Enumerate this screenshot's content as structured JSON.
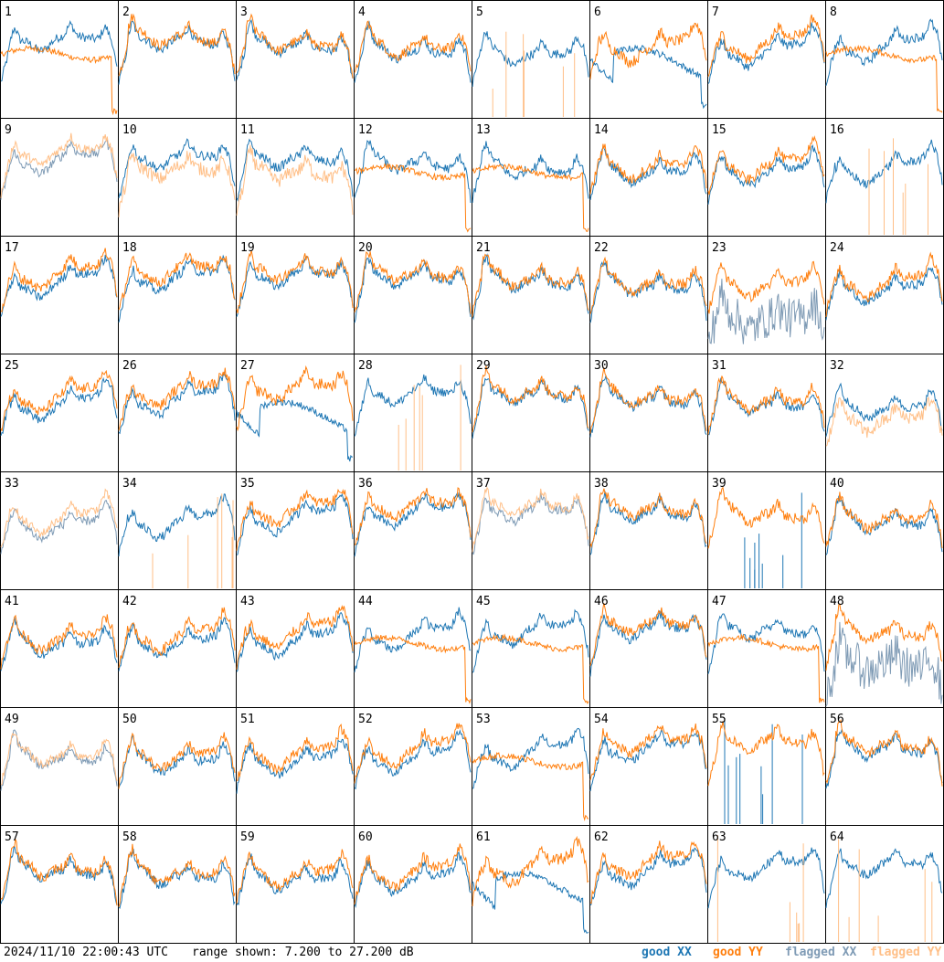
{
  "chart_data": {
    "type": "line",
    "title": "",
    "panels": [
      "1",
      "2",
      "3",
      "4",
      "5",
      "6",
      "7",
      "8",
      "9",
      "10",
      "11",
      "12",
      "13",
      "14",
      "15",
      "16",
      "17",
      "18",
      "19",
      "20",
      "21",
      "22",
      "23",
      "24",
      "25",
      "26",
      "27",
      "28",
      "29",
      "30",
      "31",
      "32",
      "33",
      "34",
      "35",
      "36",
      "37",
      "38",
      "39",
      "40",
      "41",
      "42",
      "43",
      "44",
      "45",
      "46",
      "47",
      "48",
      "49",
      "50",
      "51",
      "52",
      "53",
      "54",
      "55",
      "56",
      "57",
      "58",
      "59",
      "60",
      "61",
      "62",
      "63",
      "64"
    ],
    "ylim": [
      7.2,
      27.2
    ],
    "yunit": "dB",
    "series": [
      {
        "name": "good XX",
        "color": "#1f77b4"
      },
      {
        "name": "good YY",
        "color": "#ff7f0e"
      },
      {
        "name": "flagged XX",
        "color": "#7f9bb5"
      },
      {
        "name": "flagged YY",
        "color": "#ffbf87"
      }
    ],
    "panel_styles": {
      "normal": [
        "2",
        "3",
        "4",
        "7",
        "14",
        "15",
        "17",
        "18",
        "19",
        "20",
        "21",
        "22",
        "24",
        "25",
        "26",
        "29",
        "30",
        "31",
        "35",
        "36",
        "38",
        "40",
        "41",
        "42",
        "43",
        "46",
        "50",
        "51",
        "52",
        "54",
        "56",
        "57",
        "58",
        "59",
        "60",
        "62"
      ],
      "xx_flagged": [
        "23",
        "48"
      ],
      "yy_flagged": [
        "10",
        "11",
        "32"
      ],
      "both_flagged": [
        "9",
        "33",
        "37",
        "49"
      ],
      "xx_dropout": [
        "6",
        "27",
        "61"
      ],
      "yy_dropout": [
        "1",
        "8",
        "12",
        "13",
        "44",
        "45",
        "47",
        "53"
      ],
      "xx_spikes": [
        "39",
        "55"
      ],
      "yy_spikes": [
        "5",
        "16",
        "28",
        "34",
        "63",
        "64"
      ]
    }
  },
  "footer": {
    "timestamp": "2024/11/10 22:00:43 UTC",
    "range": "range shown: 7.200 to 27.200 dB",
    "legend": [
      "good XX",
      "good YY",
      "flagged XX",
      "flagged YY"
    ]
  }
}
